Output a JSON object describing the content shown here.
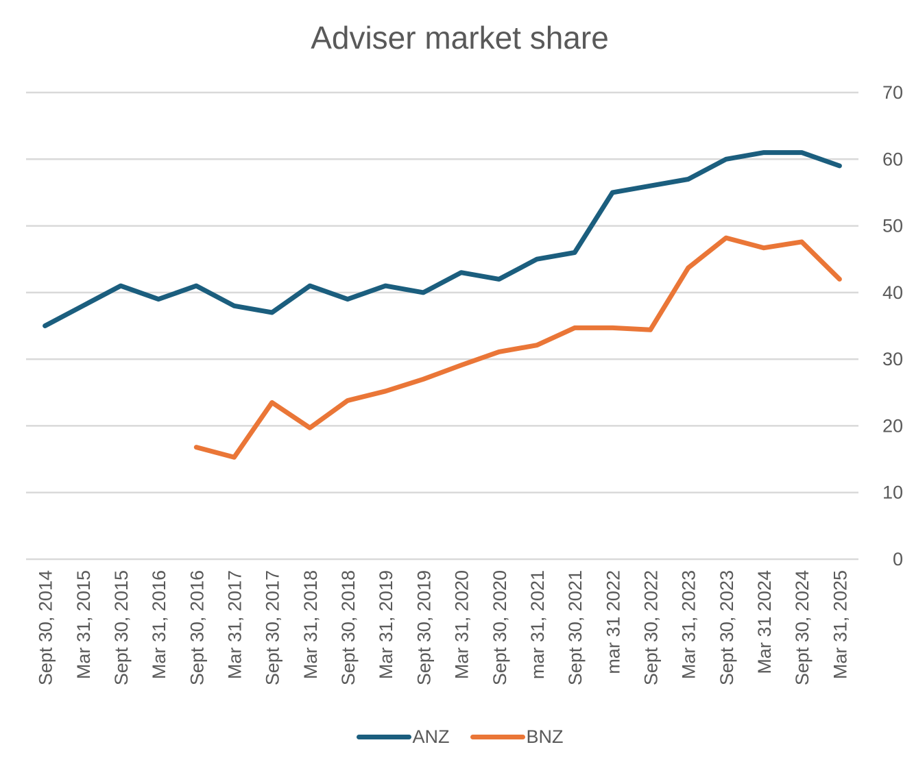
{
  "chart_data": {
    "type": "line",
    "title": "Adviser market share",
    "categories": [
      "Sept 30, 2014",
      "Mar 31, 2015",
      "Sept 30, 2015",
      "Mar 31, 2016",
      "Sept 30, 2016",
      "Mar 31, 2017",
      "Sept 30, 2017",
      "Mar 31, 2018",
      "Sept 30, 2018",
      "Mar 31, 2019",
      "Sept 30, 2019",
      "Mar 31, 2020",
      "Sept 30, 2020",
      "mar 31, 2021",
      "Sept 30, 2021",
      "mar 31 2022",
      "Sept 30, 2022",
      "Mar 31, 2023",
      "Sept 30, 2023",
      "Mar 31 2024",
      "Sept 30, 2024",
      "Mar 31, 2025"
    ],
    "series": [
      {
        "name": "ANZ",
        "color": "#1b5e7e",
        "values": [
          35,
          38,
          41,
          39,
          41,
          38,
          37,
          41,
          39,
          41,
          40,
          43,
          42,
          45,
          46,
          55,
          56,
          57,
          60,
          61,
          61,
          59
        ]
      },
      {
        "name": "BNZ",
        "color": "#ea7637",
        "values": [
          null,
          null,
          null,
          null,
          16.8,
          15.3,
          23.5,
          19.7,
          23.8,
          25.2,
          27,
          29.1,
          31.1,
          32.1,
          34.7,
          34.7,
          34.4,
          43.7,
          48.2,
          46.7,
          47.6,
          42
        ]
      }
    ],
    "yaxis_position": "right",
    "ylim": [
      0,
      70
    ],
    "yticks": [
      0,
      10,
      20,
      30,
      40,
      50,
      60,
      70
    ],
    "gridlines": true,
    "legend_position": "bottom"
  },
  "legend": {
    "items": [
      {
        "label": "ANZ",
        "color": "#1b5e7e"
      },
      {
        "label": "BNZ",
        "color": "#ea7637"
      }
    ]
  }
}
